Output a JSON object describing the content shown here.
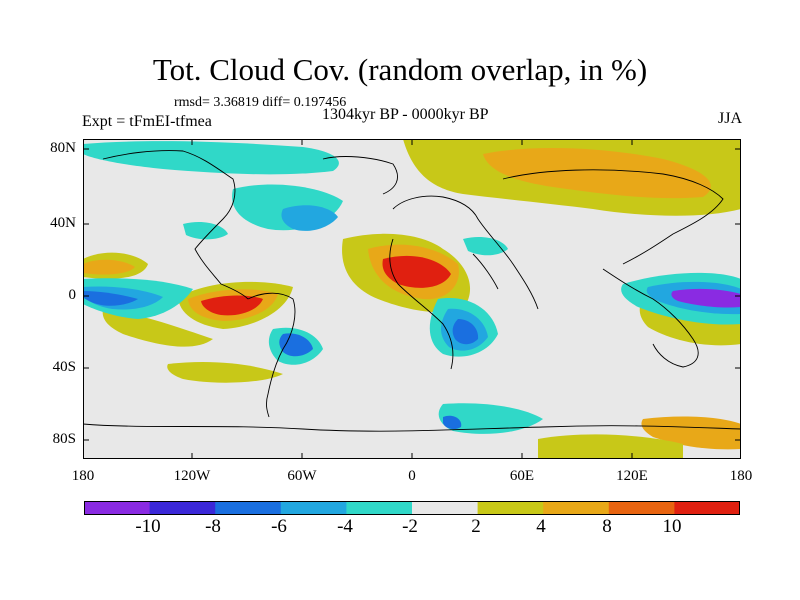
{
  "title": "Tot. Cloud Cov. (random overlap, in %)",
  "stats": "rmsd= 3.36819 diff= 0.197456",
  "experiment": "Expt = tFmEI-tfmea",
  "period": "1304kyr BP - 0000kyr BP",
  "season": "JJA",
  "lat_labels": [
    "80N",
    "40N",
    "0",
    "40S",
    "80S"
  ],
  "lon_labels": [
    "180",
    "120W",
    "60W",
    "0",
    "60E",
    "120E",
    "180"
  ],
  "colorbar": {
    "labels": [
      "-10",
      "-8",
      "-6",
      "-4",
      "-2",
      "2",
      "4",
      "8",
      "10"
    ],
    "colors": [
      "#8a2be2",
      "#3b28d8",
      "#1a6fe0",
      "#22a7e0",
      "#30d8c8",
      "#e8e8e8",
      "#c8c818",
      "#e8a818",
      "#e86410",
      "#e02010"
    ]
  }
}
